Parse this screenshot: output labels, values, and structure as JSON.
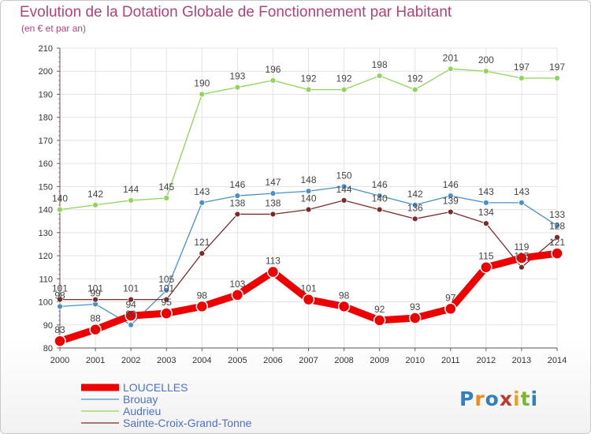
{
  "logo": {
    "p": "P",
    "r": "r",
    "o": "o",
    "x": "x",
    "i": "i",
    "t": "t",
    "i2": "i"
  },
  "chart_data": {
    "type": "line",
    "title": "Evolution de la Dotation Globale de Fonctionnement par Habitant",
    "subtitle": "(en € et par an)",
    "xlabel": "",
    "ylabel": "",
    "x": [
      2000,
      2001,
      2002,
      2003,
      2004,
      2005,
      2006,
      2007,
      2008,
      2009,
      2010,
      2011,
      2012,
      2013,
      2014
    ],
    "ylim": [
      80,
      210
    ],
    "yticks": [
      80,
      90,
      100,
      110,
      120,
      130,
      140,
      150,
      160,
      170,
      180,
      190,
      200,
      210
    ],
    "grid": true,
    "legend_position": "bottom-left",
    "series": [
      {
        "name": "Audrieu",
        "color": "#8fd45c",
        "values": [
          140,
          142,
          144,
          145,
          190,
          193,
          196,
          192,
          192,
          198,
          192,
          201,
          200,
          197,
          197
        ],
        "labels": [
          "140",
          "142",
          "144",
          "145",
          "190",
          "193",
          "196",
          "192",
          "192",
          "198",
          "192",
          "201",
          "200",
          "197",
          "197"
        ]
      },
      {
        "name": "Brouay",
        "color": "#4a90c8",
        "values": [
          98,
          99,
          90,
          105,
          143,
          146,
          147,
          148,
          150,
          146,
          142,
          146,
          143,
          143,
          133
        ],
        "labels": [
          "98",
          "99",
          "90",
          "105",
          "143",
          "146",
          "147",
          "148",
          "150",
          "146",
          "142",
          "146",
          "143",
          "143",
          "133"
        ]
      },
      {
        "name": "Sainte-Croix-Grand-Tonne",
        "color": "#7a2a2a",
        "values": [
          101,
          101,
          101,
          101,
          121,
          138,
          138,
          140,
          144,
          140,
          136,
          139,
          134,
          115,
          128
        ],
        "labels": [
          "101",
          "101",
          "101",
          "101",
          "121",
          "138",
          "138",
          "140",
          "144",
          "140",
          "136",
          "139",
          "134",
          "115",
          "128"
        ]
      },
      {
        "name": "LOUCELLES",
        "color": "#ee0000",
        "values": [
          83,
          88,
          94,
          95,
          98,
          103,
          113,
          101,
          98,
          92,
          93,
          97,
          115,
          119,
          121
        ],
        "labels": [
          "83",
          "88",
          "94",
          "95",
          "98",
          "103",
          "113",
          "101",
          "98",
          "92",
          "93",
          "97",
          "115",
          "119",
          "121"
        ]
      }
    ],
    "legend": [
      "LOUCELLES",
      "Brouay",
      "Audrieu",
      "Sainte-Croix-Grand-Tonne"
    ]
  }
}
